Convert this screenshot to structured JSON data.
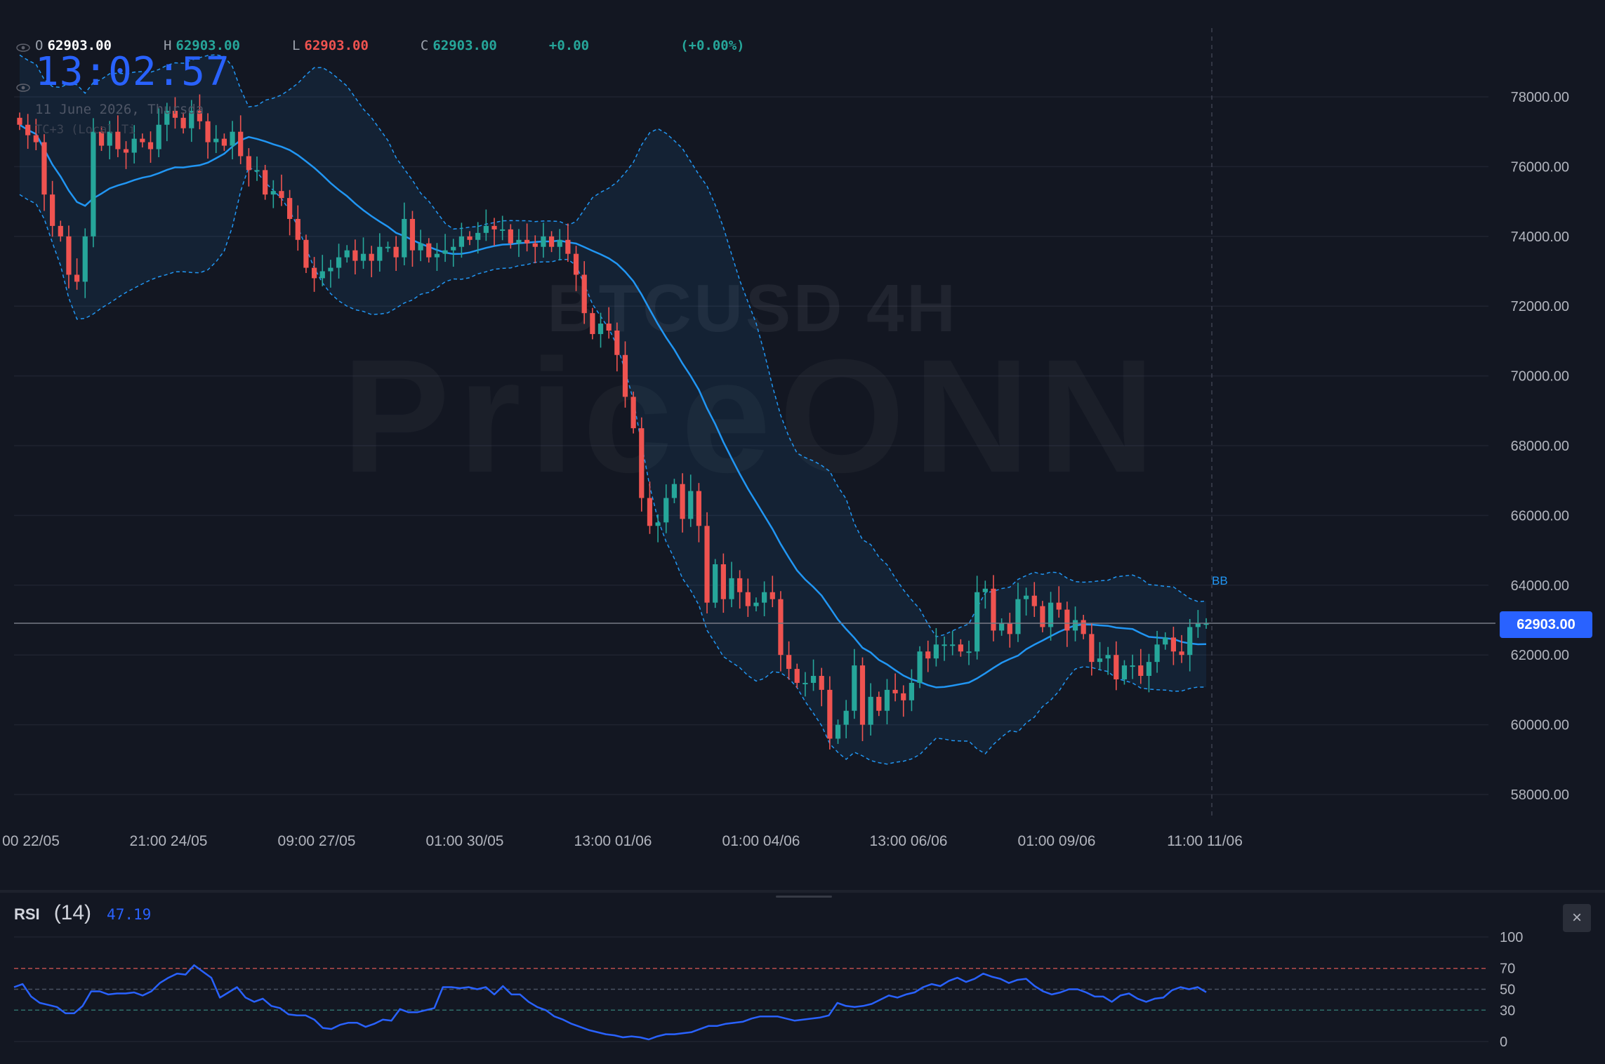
{
  "ohlc": {
    "o_label": "O",
    "o_value": "62903.00",
    "h_label": "H",
    "h_value": "62903.00",
    "l_label": "L",
    "l_value": "62903.00",
    "c_label": "C",
    "c_value": "62903.00",
    "change": "+0.00",
    "change_pct": "(+0.00%)"
  },
  "clock": "13:02:57",
  "date_line": "11 June 2026, Thursda",
  "tz_line": "TC+3 (Local Ti",
  "watermark": {
    "symbol": "BTCUSD 4H",
    "brand": "PriceONN"
  },
  "bb_label": "BB",
  "last_price": "62903.00",
  "rsi": {
    "name": "RSI",
    "length": "(14)",
    "value": "47.19"
  },
  "close_icon": "×",
  "colors": {
    "background": "#131722",
    "up": "#26a69a",
    "down": "#ef5350",
    "basis": "#2196f3",
    "accent": "#2962ff",
    "rsi_line": "#2962ff"
  },
  "chart_data": [
    {
      "type": "candlestick",
      "title": "BTCUSD 4H",
      "y_tick_labels": [
        "78000.00",
        "76000.00",
        "74000.00",
        "72000.00",
        "70000.00",
        "68000.00",
        "66000.00",
        "64000.00",
        "62000.00",
        "60000.00",
        "58000.00"
      ],
      "ylim": [
        57000,
        79600
      ],
      "x_tick_labels": [
        "00 22/05",
        "21:00 24/05",
        "09:00 27/05",
        "01:00 30/05",
        "13:00 01/06",
        "01:00 04/06",
        "13:00 06/06",
        "01:00 09/06",
        "11:00 11/06"
      ],
      "last_price": 62903,
      "closes": [
        77200,
        76900,
        76700,
        75200,
        74300,
        74000,
        72900,
        72700,
        74000,
        77000,
        76600,
        77000,
        76500,
        76400,
        76800,
        76700,
        76500,
        77200,
        77600,
        77400,
        77100,
        77600,
        77300,
        76700,
        76800,
        76600,
        77000,
        76300,
        75900,
        75900,
        75200,
        75300,
        75100,
        74500,
        73900,
        73100,
        72800,
        73000,
        73100,
        73400,
        73600,
        73300,
        73500,
        73300,
        73700,
        73700,
        73400,
        74500,
        73600,
        73800,
        73400,
        73500,
        73600,
        73700,
        74000,
        73900,
        74100,
        74300,
        74200,
        74200,
        73800,
        73900,
        73800,
        73700,
        74000,
        73700,
        73900,
        73500,
        72900,
        71800,
        71200,
        71500,
        71300,
        70600,
        69400,
        68500,
        66500,
        65700,
        65800,
        66500,
        66900,
        65900,
        66700,
        65700,
        63500,
        64600,
        63600,
        64200,
        63800,
        63400,
        63500,
        63800,
        63600,
        62000,
        61600,
        61200,
        61200,
        61400,
        61000,
        59600,
        60000,
        60400,
        61700,
        60000,
        60800,
        60400,
        61000,
        60900,
        60700,
        61200,
        62100,
        61900,
        62300,
        62300,
        62300,
        62100,
        62100,
        63800,
        63900,
        62700,
        62900,
        62600,
        63600,
        63700,
        63400,
        62800,
        63500,
        63300,
        62700,
        63000,
        62600,
        61800,
        61900,
        62000,
        61300,
        61700,
        61700,
        61400,
        61800,
        62300,
        62500,
        62100,
        62000,
        62800,
        62900,
        62903
      ],
      "basis_start": 76800,
      "basis_end": 62500,
      "x_range_note": "approx 22/05 to 11/06 2026, 4H bars",
      "series": [
        {
          "name": "BB",
          "role": "bollinger bands"
        }
      ]
    },
    {
      "type": "line",
      "title": "RSI (14)",
      "y_tick_labels": [
        "100",
        "70",
        "50",
        "30",
        "0"
      ],
      "ylim": [
        0,
        100
      ],
      "reference_lines": [
        70,
        50,
        30
      ],
      "last_value": 47.19,
      "values": [
        52,
        55,
        43,
        37,
        35,
        33,
        27,
        27,
        34,
        48,
        48,
        45,
        46,
        46,
        47,
        44,
        48,
        56,
        61,
        65,
        64,
        73,
        67,
        61,
        42,
        47,
        52,
        42,
        38,
        41,
        34,
        32,
        26,
        25,
        25,
        21,
        13,
        12,
        16,
        18,
        18,
        14,
        17,
        21,
        20,
        31,
        28,
        28,
        30,
        32,
        52,
        52,
        51,
        52,
        50,
        52,
        45,
        53,
        45,
        45,
        38,
        33,
        30,
        24,
        21,
        17,
        14,
        11,
        9,
        7,
        6,
        4,
        5,
        4,
        2,
        5,
        7,
        7,
        8,
        9,
        12,
        15,
        15,
        17,
        18,
        19,
        22,
        24,
        24,
        24,
        22,
        20,
        21,
        22,
        23,
        25,
        37,
        34,
        33,
        34,
        36,
        40,
        44,
        42,
        45,
        47,
        52,
        55,
        53,
        58,
        61,
        57,
        60,
        65,
        62,
        60,
        56,
        59,
        60,
        53,
        48,
        45,
        47,
        50,
        50,
        47,
        43,
        43,
        38,
        44,
        46,
        41,
        38,
        41,
        42,
        49,
        52,
        50,
        52,
        47.19
      ]
    }
  ]
}
